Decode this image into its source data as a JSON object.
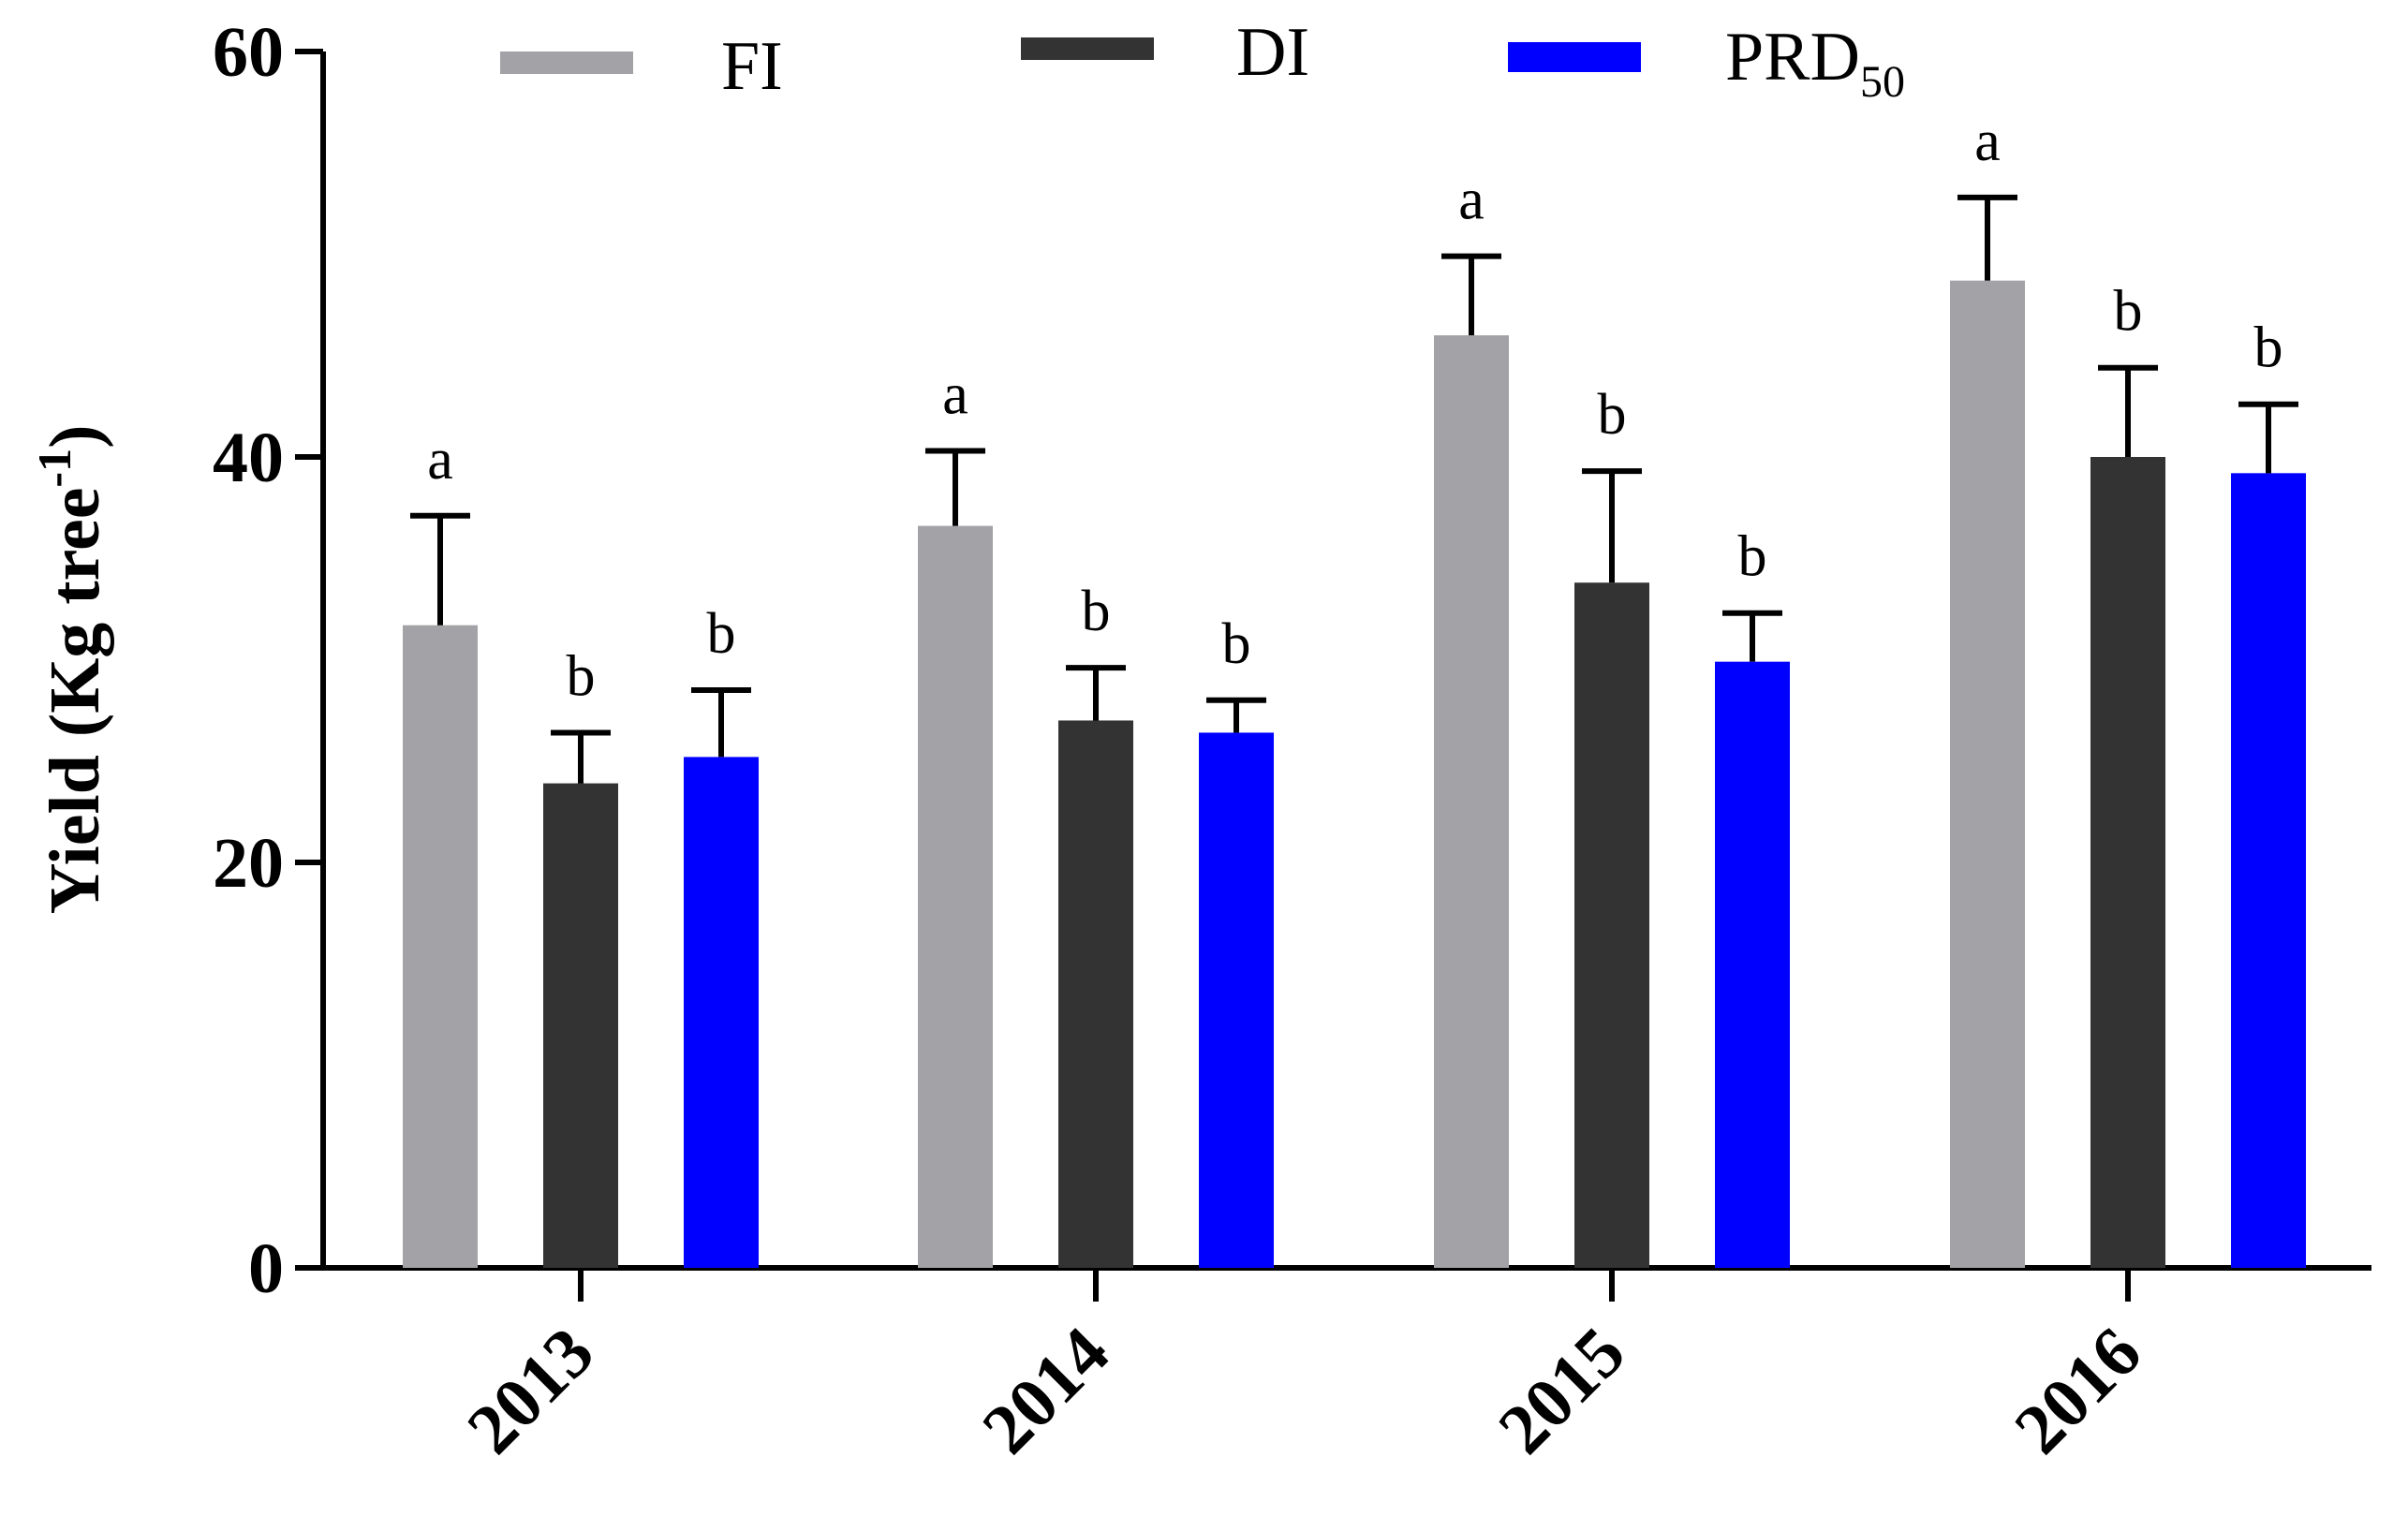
{
  "chart_data": {
    "type": "bar",
    "title": "",
    "xlabel": "",
    "ylabel": "Yield (Kg tree",
    "ylabel_superscript": "-1",
    "ylabel_close": ")",
    "ylim": [
      0,
      60
    ],
    "yticks": [
      0,
      20,
      40,
      60
    ],
    "ytick_labels": [
      "0",
      "20",
      "40",
      "60"
    ],
    "categories": [
      "2013",
      "2014",
      "2015",
      "2016"
    ],
    "legend_position": "top",
    "series": [
      {
        "name": "FI",
        "legend_main": "FI",
        "legend_sub": "",
        "color": "#a3a3a7",
        "values": [
          31.7,
          36.6,
          46.0,
          48.7
        ],
        "errors": [
          5.4,
          3.7,
          3.9,
          4.1
        ],
        "labels": [
          "a",
          "a",
          "a",
          "a"
        ]
      },
      {
        "name": "DI",
        "legend_main": "DI",
        "legend_sub": "",
        "color": "#333333",
        "values": [
          23.9,
          27.0,
          33.8,
          40.0
        ],
        "errors": [
          2.5,
          2.6,
          5.5,
          4.4
        ],
        "labels": [
          "b",
          "b",
          "b",
          "b"
        ]
      },
      {
        "name": "PRD50",
        "legend_main": "PRD",
        "legend_sub": "50",
        "color": "#0000ff",
        "values": [
          25.2,
          26.4,
          29.9,
          39.2
        ],
        "errors": [
          3.3,
          1.6,
          2.4,
          3.4
        ],
        "labels": [
          "b",
          "b",
          "b",
          "b"
        ]
      }
    ]
  }
}
